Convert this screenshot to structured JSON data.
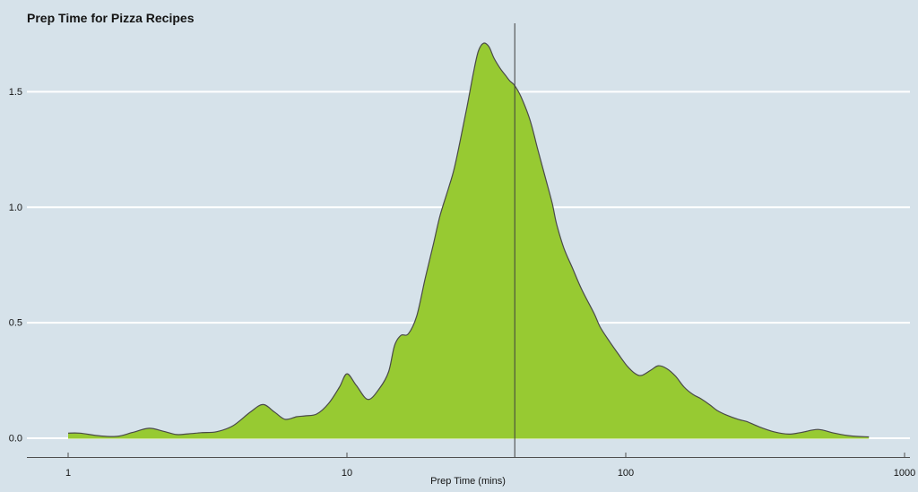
{
  "title": "Prep Time for Pizza Recipes",
  "colors": {
    "background": "#d6e2ea",
    "area_fill": "#97ca32",
    "area_stroke": "#4a4a4a",
    "gridline": "#ffffff",
    "axis_line": "#4f4f4f",
    "reference_line": "#3c3c3c",
    "text": "#141414"
  },
  "chart_data": {
    "type": "area",
    "subtype": "kernel-density",
    "title": "Prep Time for Pizza Recipes",
    "xlabel": "Prep Time (mins)",
    "ylabel": "",
    "x_scale": "log10",
    "xlim": [
      1,
      1000
    ],
    "ylim": [
      0,
      1.75
    ],
    "x_ticks": [
      1,
      10,
      100,
      1000
    ],
    "x_tick_labels": [
      "1",
      "10",
      "100",
      "1000"
    ],
    "y_ticks": [
      0,
      0.5,
      1,
      1.5
    ],
    "y_tick_labels": [
      "0.0",
      "0.5",
      "1.0",
      "1.5"
    ],
    "grid": "horizontal",
    "legend": "none",
    "reference_line_x": 40,
    "peak": {
      "x": 31,
      "y": 1.71
    },
    "series": [
      {
        "name": "prep-time-density",
        "x": [
          1.0,
          1.1,
          1.3,
          1.5,
          1.7,
          1.95,
          2.2,
          2.45,
          2.7,
          3.0,
          3.4,
          3.9,
          4.5,
          5.0,
          5.5,
          6.0,
          6.6,
          7.1,
          7.8,
          8.6,
          9.4,
          10.0,
          10.8,
          11.9,
          13.1,
          14.1,
          14.8,
          15.6,
          16.6,
          17.8,
          19.1,
          20.4,
          21.6,
          23.3,
          24.5,
          26.9,
          28.5,
          29.6,
          30.9,
          32.3,
          33.7,
          35.5,
          37.1,
          38.4,
          39.9,
          42.1,
          45.3,
          48.2,
          51.7,
          54.5,
          56.5,
          60,
          64.6,
          69.5,
          77,
          81,
          87,
          94,
          101,
          108,
          114,
          123,
          131,
          141,
          151,
          162,
          174,
          186,
          200,
          213,
          230,
          254,
          272,
          300,
          340,
          385,
          430,
          490,
          560,
          640,
          745
        ],
        "y": [
          0.022,
          0.022,
          0.01,
          0.008,
          0.025,
          0.043,
          0.03,
          0.016,
          0.019,
          0.024,
          0.028,
          0.054,
          0.113,
          0.146,
          0.113,
          0.082,
          0.093,
          0.097,
          0.105,
          0.151,
          0.221,
          0.279,
          0.229,
          0.168,
          0.217,
          0.287,
          0.4,
          0.445,
          0.452,
          0.53,
          0.694,
          0.838,
          0.966,
          1.094,
          1.19,
          1.43,
          1.59,
          1.676,
          1.71,
          1.695,
          1.645,
          1.6,
          1.57,
          1.547,
          1.528,
          1.478,
          1.38,
          1.257,
          1.12,
          1.017,
          0.927,
          0.823,
          0.733,
          0.644,
          0.54,
          0.481,
          0.423,
          0.365,
          0.314,
          0.28,
          0.272,
          0.295,
          0.314,
          0.3,
          0.268,
          0.221,
          0.19,
          0.171,
          0.145,
          0.12,
          0.1,
          0.081,
          0.072,
          0.05,
          0.028,
          0.018,
          0.026,
          0.038,
          0.022,
          0.01,
          0.006
        ]
      }
    ]
  }
}
